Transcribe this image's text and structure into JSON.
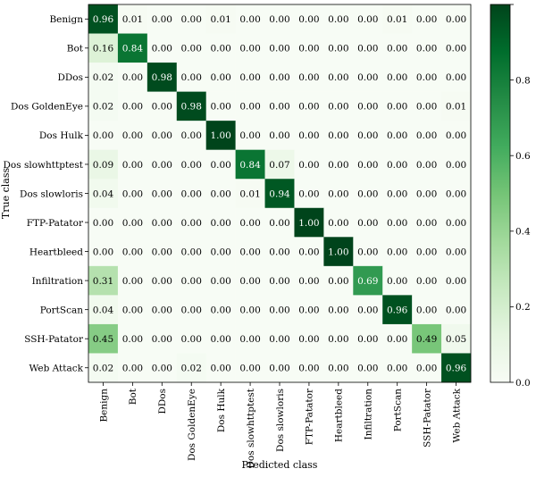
{
  "chart_data": {
    "type": "heatmap",
    "title": "",
    "xlabel": "Predicted class",
    "ylabel": "True class",
    "x_categories": [
      "Benign",
      "Bot",
      "DDos",
      "Dos GoldenEye",
      "Dos Hulk",
      "Dos slowhttptest",
      "Dos slowloris",
      "FTP-Patator",
      "Heartbleed",
      "Infiltration",
      "PortScan",
      "SSH-Patator",
      "Web Attack"
    ],
    "y_categories": [
      "Benign",
      "Bot",
      "DDos",
      "Dos GoldenEye",
      "Dos Hulk",
      "Dos slowhttptest",
      "Dos slowloris",
      "FTP-Patator",
      "Heartbleed",
      "Infiltration",
      "PortScan",
      "SSH-Patator",
      "Web Attack"
    ],
    "values": [
      [
        0.96,
        0.01,
        0.0,
        0.0,
        0.01,
        0.0,
        0.0,
        0.0,
        0.0,
        0.0,
        0.01,
        0.0,
        0.0
      ],
      [
        0.16,
        0.84,
        0.0,
        0.0,
        0.0,
        0.0,
        0.0,
        0.0,
        0.0,
        0.0,
        0.0,
        0.0,
        0.0
      ],
      [
        0.02,
        0.0,
        0.98,
        0.0,
        0.0,
        0.0,
        0.0,
        0.0,
        0.0,
        0.0,
        0.0,
        0.0,
        0.0
      ],
      [
        0.02,
        0.0,
        0.0,
        0.98,
        0.0,
        0.0,
        0.0,
        0.0,
        0.0,
        0.0,
        0.0,
        0.0,
        0.01
      ],
      [
        0.0,
        0.0,
        0.0,
        0.0,
        1.0,
        0.0,
        0.0,
        0.0,
        0.0,
        0.0,
        0.0,
        0.0,
        0.0
      ],
      [
        0.09,
        0.0,
        0.0,
        0.0,
        0.0,
        0.84,
        0.07,
        0.0,
        0.0,
        0.0,
        0.0,
        0.0,
        0.0
      ],
      [
        0.04,
        0.0,
        0.0,
        0.0,
        0.0,
        0.01,
        0.94,
        0.0,
        0.0,
        0.0,
        0.0,
        0.0,
        0.0
      ],
      [
        0.0,
        0.0,
        0.0,
        0.0,
        0.0,
        0.0,
        0.0,
        1.0,
        0.0,
        0.0,
        0.0,
        0.0,
        0.0
      ],
      [
        0.0,
        0.0,
        0.0,
        0.0,
        0.0,
        0.0,
        0.0,
        0.0,
        1.0,
        0.0,
        0.0,
        0.0,
        0.0
      ],
      [
        0.31,
        0.0,
        0.0,
        0.0,
        0.0,
        0.0,
        0.0,
        0.0,
        0.0,
        0.69,
        0.0,
        0.0,
        0.0
      ],
      [
        0.04,
        0.0,
        0.0,
        0.0,
        0.0,
        0.0,
        0.0,
        0.0,
        0.0,
        0.0,
        0.96,
        0.0,
        0.0
      ],
      [
        0.45,
        0.0,
        0.0,
        0.0,
        0.0,
        0.0,
        0.0,
        0.0,
        0.0,
        0.0,
        0.0,
        0.49,
        0.05
      ],
      [
        0.02,
        0.0,
        0.0,
        0.02,
        0.0,
        0.0,
        0.0,
        0.0,
        0.0,
        0.0,
        0.0,
        0.0,
        0.96
      ]
    ],
    "colorbar": {
      "range": [
        0.0,
        1.0
      ],
      "ticks": [
        0.0,
        0.2,
        0.4,
        0.6,
        0.8,
        1.0
      ],
      "tick_labels": [
        "0.0",
        "0.2",
        "0.4",
        "0.6",
        "0.8",
        ""
      ],
      "colormap": "Greens",
      "color_low": "#f7fcf5",
      "color_high": "#00441b"
    },
    "cell_text_dark": "#000000",
    "cell_text_light": "#ffffff",
    "grid": false,
    "legend": "colorbar-right"
  }
}
